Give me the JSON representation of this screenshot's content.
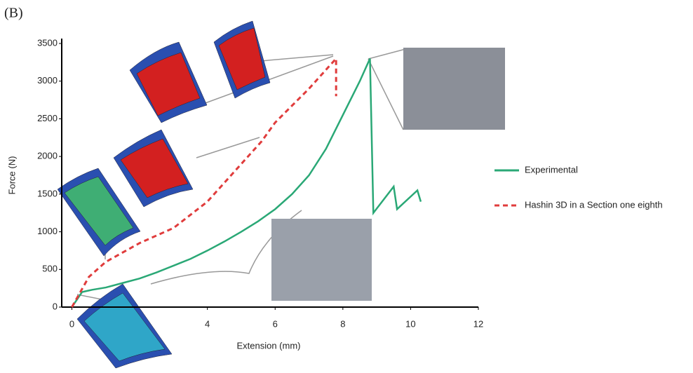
{
  "chart_data": {
    "type": "line",
    "panel_label": "(B)",
    "x_label": "Extension (mm)",
    "y_label": "Force (N)",
    "xlim": [
      -0.3,
      12
    ],
    "ylim": [
      0,
      3500
    ],
    "xticks": [
      0,
      4,
      6,
      8,
      10,
      12
    ],
    "yticks": [
      0,
      500,
      1000,
      1500,
      2000,
      2500,
      3000,
      3500
    ],
    "legend": "right",
    "series": [
      {
        "name": "Experimental",
        "color": "#2aa876",
        "dashed": false,
        "x": [
          0,
          0.3,
          0.6,
          1,
          1.5,
          2,
          2.5,
          3,
          3.5,
          4,
          4.5,
          5,
          5.5,
          6,
          6.5,
          7,
          7.5,
          8,
          8.5,
          8.8,
          8.9,
          9.5,
          9.6,
          10.2,
          10.3
        ],
        "values": [
          0,
          200,
          230,
          260,
          320,
          380,
          460,
          550,
          640,
          750,
          870,
          1000,
          1140,
          1300,
          1500,
          1750,
          2100,
          2550,
          3000,
          3300,
          1250,
          1600,
          1300,
          1550,
          1400
        ]
      },
      {
        "name": "Hashin 3D in a Section one eighth",
        "color": "#e03c3c",
        "dashed": true,
        "x": [
          0,
          0.5,
          1,
          2,
          3,
          4,
          5,
          5.6,
          6,
          7,
          7.8,
          7.8
        ],
        "values": [
          0,
          400,
          600,
          850,
          1050,
          1400,
          1900,
          2200,
          2450,
          2900,
          3300,
          2800
        ]
      }
    ]
  }
}
